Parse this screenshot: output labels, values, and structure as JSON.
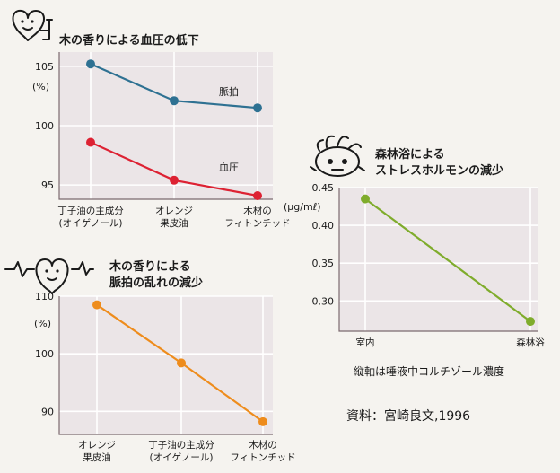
{
  "colors": {
    "pulse": "#2e7192",
    "blood": "#dd2233",
    "orange": "#ee8c1c",
    "green": "#7fac2c",
    "plot_bg": "#ebe5e7"
  },
  "icons": {
    "chart1": "heart-face-with-pump-icon",
    "chart2": "heart-with-pulse-line-icon",
    "chart3": "stressed-face-icon"
  },
  "chart_data": [
    {
      "type": "line",
      "title": "木の香りによる血圧の低下",
      "unit": "(%)",
      "categories": [
        {
          "line1": "丁子油の主成分",
          "line2": "(オイゲノール)"
        },
        {
          "line1": "オレンジ",
          "line2": "果皮油"
        },
        {
          "line1": "木材の",
          "line2": "フィトンチッド"
        }
      ],
      "series": [
        {
          "name": "脈拍",
          "color": "#2e7192",
          "values": [
            105.2,
            102.1,
            101.5
          ]
        },
        {
          "name": "血圧",
          "color": "#dd2233",
          "values": [
            98.6,
            95.4,
            94.1
          ]
        }
      ],
      "ylim": [
        93.8,
        106.2
      ],
      "yticks": [
        95,
        100,
        105
      ],
      "grid": true
    },
    {
      "type": "line",
      "title": "木の香りによる",
      "title2": "脈拍の乱れの減少",
      "unit": "(%)",
      "categories": [
        {
          "line1": "オレンジ",
          "line2": "果皮油"
        },
        {
          "line1": "丁子油の主成分",
          "line2": "(オイゲノール)"
        },
        {
          "line1": "木材の",
          "line2": "フィトンチッド"
        }
      ],
      "series": [
        {
          "name": "",
          "color": "#ee8c1c",
          "values": [
            108.5,
            98.4,
            88.2
          ]
        }
      ],
      "ylim": [
        86,
        110
      ],
      "yticks": [
        90,
        100,
        110
      ],
      "grid": true
    },
    {
      "type": "line",
      "title": "森林浴による",
      "title2": "ストレスホルモンの減少",
      "unit": "(μg/mℓ)",
      "categories": [
        {
          "line1": "室内",
          "line2": ""
        },
        {
          "line1": "森林浴",
          "line2": ""
        }
      ],
      "series": [
        {
          "name": "",
          "color": "#7fac2c",
          "values": [
            0.435,
            0.273
          ]
        }
      ],
      "ylim": [
        0.26,
        0.45
      ],
      "yticks": [
        0.3,
        0.35,
        0.4,
        0.45
      ],
      "ytick_labels": [
        "0.30",
        "0.35",
        "0.40",
        "0.45"
      ],
      "grid": true,
      "note": "縦軸は唾液中コルチゾール濃度"
    }
  ],
  "source": "資料：宮崎良文,1996"
}
